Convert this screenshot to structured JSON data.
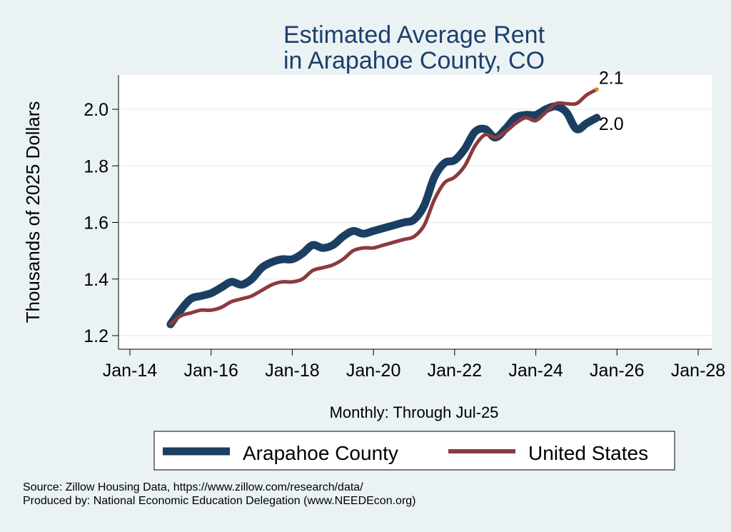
{
  "chart_data": {
    "type": "line",
    "title": [
      "Estimated Average Rent",
      "in Arapahoe County, CO"
    ],
    "xlabel": "Monthly: Through Jul-25",
    "ylabel": "Thousands of 2025 Dollars",
    "x_ticks": [
      "Jan-14",
      "Jan-16",
      "Jan-18",
      "Jan-20",
      "Jan-22",
      "Jan-24",
      "Jan-26",
      "Jan-28"
    ],
    "y_ticks": [
      "1.2",
      "1.4",
      "1.6",
      "1.8",
      "2.0"
    ],
    "xlim": [
      "2014-01",
      "2028-01"
    ],
    "ylim": [
      1.2,
      2.1
    ],
    "grid": true,
    "legend_position": "bottom",
    "end_labels": {
      "United States": "2.1",
      "Arapahoe County": "2.0"
    },
    "series": [
      {
        "name": "Arapahoe County",
        "color": "#1b3f62",
        "points": [
          [
            "2015-01",
            1.24
          ],
          [
            "2015-04",
            1.29
          ],
          [
            "2015-07",
            1.33
          ],
          [
            "2015-10",
            1.34
          ],
          [
            "2016-01",
            1.35
          ],
          [
            "2016-04",
            1.37
          ],
          [
            "2016-07",
            1.39
          ],
          [
            "2016-10",
            1.38
          ],
          [
            "2017-01",
            1.4
          ],
          [
            "2017-04",
            1.44
          ],
          [
            "2017-07",
            1.46
          ],
          [
            "2017-10",
            1.47
          ],
          [
            "2018-01",
            1.47
          ],
          [
            "2018-04",
            1.49
          ],
          [
            "2018-07",
            1.52
          ],
          [
            "2018-10",
            1.51
          ],
          [
            "2019-01",
            1.52
          ],
          [
            "2019-04",
            1.55
          ],
          [
            "2019-07",
            1.57
          ],
          [
            "2019-10",
            1.56
          ],
          [
            "2020-01",
            1.57
          ],
          [
            "2020-04",
            1.58
          ],
          [
            "2020-07",
            1.59
          ],
          [
            "2020-10",
            1.6
          ],
          [
            "2021-01",
            1.61
          ],
          [
            "2021-04",
            1.66
          ],
          [
            "2021-07",
            1.76
          ],
          [
            "2021-10",
            1.81
          ],
          [
            "2022-01",
            1.82
          ],
          [
            "2022-04",
            1.86
          ],
          [
            "2022-07",
            1.92
          ],
          [
            "2022-10",
            1.93
          ],
          [
            "2023-01",
            1.9
          ],
          [
            "2023-04",
            1.93
          ],
          [
            "2023-07",
            1.97
          ],
          [
            "2023-10",
            1.98
          ],
          [
            "2024-01",
            1.98
          ],
          [
            "2024-04",
            2.0
          ],
          [
            "2024-07",
            2.01
          ],
          [
            "2024-10",
            1.99
          ],
          [
            "2025-01",
            1.93
          ],
          [
            "2025-04",
            1.95
          ],
          [
            "2025-07",
            1.97
          ]
        ]
      },
      {
        "name": "United States",
        "color": "#8c3a3d",
        "points": [
          [
            "2015-01",
            1.24
          ],
          [
            "2015-04",
            1.27
          ],
          [
            "2015-07",
            1.28
          ],
          [
            "2015-10",
            1.29
          ],
          [
            "2016-01",
            1.29
          ],
          [
            "2016-04",
            1.3
          ],
          [
            "2016-07",
            1.32
          ],
          [
            "2016-10",
            1.33
          ],
          [
            "2017-01",
            1.34
          ],
          [
            "2017-04",
            1.36
          ],
          [
            "2017-07",
            1.38
          ],
          [
            "2017-10",
            1.39
          ],
          [
            "2018-01",
            1.39
          ],
          [
            "2018-04",
            1.4
          ],
          [
            "2018-07",
            1.43
          ],
          [
            "2018-10",
            1.44
          ],
          [
            "2019-01",
            1.45
          ],
          [
            "2019-04",
            1.47
          ],
          [
            "2019-07",
            1.5
          ],
          [
            "2019-10",
            1.51
          ],
          [
            "2020-01",
            1.51
          ],
          [
            "2020-04",
            1.52
          ],
          [
            "2020-07",
            1.53
          ],
          [
            "2020-10",
            1.54
          ],
          [
            "2021-01",
            1.55
          ],
          [
            "2021-04",
            1.59
          ],
          [
            "2021-07",
            1.68
          ],
          [
            "2021-10",
            1.74
          ],
          [
            "2022-01",
            1.76
          ],
          [
            "2022-04",
            1.8
          ],
          [
            "2022-07",
            1.87
          ],
          [
            "2022-10",
            1.91
          ],
          [
            "2023-01",
            1.9
          ],
          [
            "2023-04",
            1.92
          ],
          [
            "2023-07",
            1.95
          ],
          [
            "2023-10",
            1.97
          ],
          [
            "2024-01",
            1.96
          ],
          [
            "2024-04",
            1.99
          ],
          [
            "2024-07",
            2.02
          ],
          [
            "2024-10",
            2.02
          ],
          [
            "2025-01",
            2.02
          ],
          [
            "2025-04",
            2.05
          ],
          [
            "2025-07",
            2.07
          ]
        ]
      }
    ]
  },
  "footer": {
    "source": "Source: Zillow Housing Data, https://www.zillow.com/research/data/",
    "producer": "Produced by: National Economic Education Delegation (www.NEEDEcon.org)"
  }
}
